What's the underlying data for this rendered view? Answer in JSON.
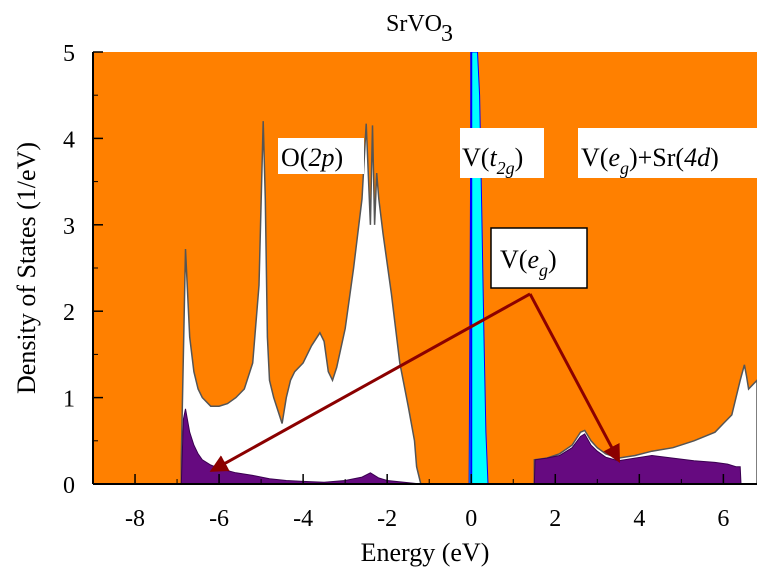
{
  "chart_data": {
    "type": "area",
    "title_main": "SrVO",
    "title_sub": "3",
    "xlabel": "Energy (eV)",
    "ylabel": "Density of States (1/eV)",
    "xlim": [
      -9,
      6.8
    ],
    "ylim": [
      0,
      5
    ],
    "xticks": [
      -8,
      -6,
      -4,
      -2,
      0,
      2,
      4,
      6
    ],
    "yticks": [
      0,
      1,
      2,
      3,
      4,
      5
    ],
    "fermi_level": 0,
    "colors": {
      "background": "#ff8000",
      "total_dos_fill": "#ffffff",
      "total_dos_line": "#555555",
      "v_eg_fill": "#660a80",
      "v_t2g_fill": "#00ffff",
      "fermi_line": "#0000ff",
      "arrow": "#8b0000"
    },
    "series": [
      {
        "key": "total",
        "x": [
          -6.9,
          -6.8,
          -6.7,
          -6.6,
          -6.5,
          -6.4,
          -6.2,
          -6.0,
          -5.8,
          -5.6,
          -5.4,
          -5.2,
          -5.05,
          -4.95,
          -4.9,
          -4.85,
          -4.8,
          -4.7,
          -4.5,
          -4.4,
          -4.3,
          -4.2,
          -4.0,
          -3.8,
          -3.6,
          -3.5,
          -3.4,
          -3.3,
          -3.2,
          -3.0,
          -2.8,
          -2.6,
          -2.5,
          -2.4,
          -2.35,
          -2.3,
          -2.25,
          -2.2,
          -2.1,
          -1.9,
          -1.7,
          -1.5,
          -1.35,
          -1.3,
          -1.2
        ],
        "values": [
          0.3,
          2.72,
          1.7,
          1.3,
          1.1,
          1.0,
          0.9,
          0.9,
          0.93,
          1.0,
          1.1,
          1.4,
          2.3,
          4.2,
          3.3,
          1.7,
          1.2,
          1.0,
          0.7,
          1.0,
          1.2,
          1.3,
          1.4,
          1.6,
          1.75,
          1.65,
          1.3,
          1.2,
          1.35,
          1.8,
          2.5,
          3.3,
          4.17,
          3.0,
          4.15,
          3.0,
          3.6,
          3.3,
          2.9,
          2.2,
          1.4,
          0.9,
          0.5,
          0.2,
          0
        ]
      },
      {
        "key": "total",
        "x": [
          1.5,
          1.8,
          2.1,
          2.4,
          2.6,
          2.7,
          2.85,
          3.0,
          3.2,
          3.5,
          3.9,
          4.3,
          4.8,
          5.3,
          5.8,
          6.0,
          6.2,
          6.3,
          6.4,
          6.5,
          6.55,
          6.6,
          6.8
        ],
        "values": [
          0.28,
          0.3,
          0.35,
          0.45,
          0.6,
          0.62,
          0.5,
          0.42,
          0.35,
          0.3,
          0.33,
          0.38,
          0.42,
          0.5,
          0.6,
          0.7,
          0.8,
          1.0,
          1.2,
          1.38,
          1.25,
          1.1,
          1.2
        ]
      },
      {
        "key": "v_eg",
        "x": [
          -6.9,
          -6.85,
          -6.8,
          -6.7,
          -6.6,
          -6.5,
          -6.4,
          -6.2,
          -6.0,
          -5.6,
          -5.2,
          -4.8,
          -4.4,
          -4.0,
          -3.5,
          -3.0,
          -2.6,
          -2.4,
          -2.3,
          -2.2,
          -2.0,
          -1.6,
          -1.2
        ],
        "values": [
          0,
          0.75,
          0.87,
          0.6,
          0.45,
          0.35,
          0.28,
          0.22,
          0.18,
          0.13,
          0.1,
          0.06,
          0.04,
          0.03,
          0.02,
          0.04,
          0.08,
          0.13,
          0.1,
          0.07,
          0.04,
          0.02,
          0
        ]
      },
      {
        "key": "v_eg",
        "x": [
          1.5,
          1.52,
          1.8,
          2.1,
          2.4,
          2.6,
          2.7,
          2.85,
          3.0,
          3.2,
          3.5,
          3.9,
          4.3,
          4.8,
          5.3,
          5.8,
          6.1,
          6.3,
          6.4,
          6.42
        ],
        "values": [
          0,
          0.28,
          0.3,
          0.33,
          0.42,
          0.55,
          0.58,
          0.45,
          0.38,
          0.31,
          0.27,
          0.3,
          0.33,
          0.3,
          0.27,
          0.25,
          0.23,
          0.2,
          0.2,
          0
        ]
      },
      {
        "key": "v_t2g",
        "x": [
          -0.05,
          0.0,
          0.05,
          0.1,
          0.15,
          0.2,
          0.25,
          0.3,
          0.35,
          0.4
        ],
        "values": [
          0,
          5,
          5,
          5,
          5,
          4.5,
          3.2,
          1.8,
          0.6,
          0
        ]
      }
    ],
    "annotations": [
      {
        "key": "o2p",
        "text": "O(2p)",
        "x": -3.6,
        "y": 3.85
      },
      {
        "key": "vt2g",
        "text": "V(t2g)",
        "x": 0.2,
        "y": 3.85
      },
      {
        "key": "vegsr",
        "text": "V(eg)+Sr(4d)",
        "x": 4.2,
        "y": 3.85
      },
      {
        "key": "veg",
        "text": "V(eg)",
        "x": 1.4,
        "y": 2.6
      }
    ],
    "arrows": [
      {
        "from": [
          1.4,
          2.2
        ],
        "to": [
          -6.15,
          0.16
        ]
      },
      {
        "from": [
          1.4,
          2.2
        ],
        "to": [
          3.5,
          0.28
        ]
      }
    ]
  }
}
